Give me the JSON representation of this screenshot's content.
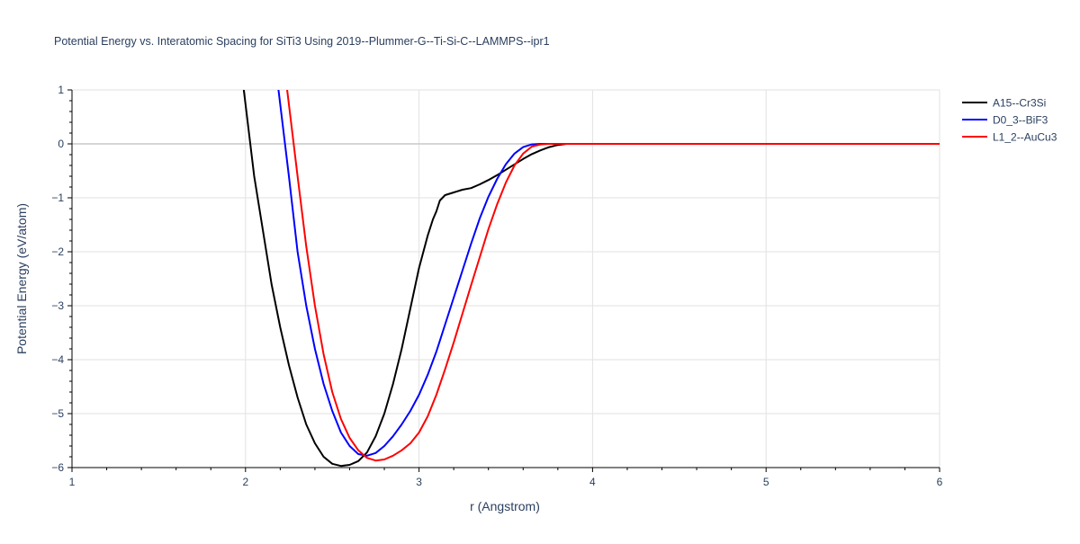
{
  "chart_data": {
    "type": "line",
    "title": "Potential Energy vs. Interatomic Spacing for SiTi3 Using 2019--Plummer-G--Ti-Si-C--LAMMPS--ipr1",
    "xlabel": "r (Angstrom)",
    "ylabel": "Potential Energy (eV/atom)",
    "xlim": [
      1,
      6
    ],
    "ylim": [
      -6,
      1
    ],
    "xticks": [
      1,
      2,
      3,
      4,
      5,
      6
    ],
    "yticks": [
      1,
      0,
      -1,
      -2,
      -3,
      -4,
      -5,
      -6
    ],
    "xtick_labels": [
      "1",
      "2",
      "3",
      "4",
      "5",
      "6"
    ],
    "ytick_labels": [
      "1",
      "0",
      "−1",
      "−2",
      "−3",
      "−4",
      "−5",
      "−6"
    ],
    "grid": true,
    "legend_position": "top-right",
    "series": [
      {
        "name": "A15--Cr3Si",
        "color": "#000000",
        "x": [
          1.99,
          2.02,
          2.05,
          2.1,
          2.15,
          2.2,
          2.25,
          2.3,
          2.35,
          2.4,
          2.45,
          2.5,
          2.55,
          2.6,
          2.65,
          2.7,
          2.75,
          2.8,
          2.85,
          2.9,
          2.95,
          3.0,
          3.05,
          3.08,
          3.1,
          3.12,
          3.15,
          3.2,
          3.25,
          3.3,
          3.35,
          3.4,
          3.45,
          3.5,
          3.55,
          3.6,
          3.65,
          3.7,
          3.75,
          3.8,
          3.85,
          3.9,
          4.0,
          5.0,
          6.0
        ],
        "y": [
          1.0,
          0.2,
          -0.6,
          -1.6,
          -2.6,
          -3.4,
          -4.1,
          -4.7,
          -5.2,
          -5.55,
          -5.8,
          -5.93,
          -5.97,
          -5.95,
          -5.88,
          -5.72,
          -5.42,
          -5.0,
          -4.45,
          -3.8,
          -3.05,
          -2.3,
          -1.7,
          -1.4,
          -1.25,
          -1.05,
          -0.95,
          -0.9,
          -0.85,
          -0.82,
          -0.75,
          -0.67,
          -0.58,
          -0.48,
          -0.38,
          -0.28,
          -0.19,
          -0.12,
          -0.06,
          -0.02,
          0.0,
          0.0,
          0.0,
          0.0,
          0.0
        ]
      },
      {
        "name": "D0_3--BiF3",
        "color": "#0000ff",
        "x": [
          2.19,
          2.22,
          2.25,
          2.3,
          2.35,
          2.4,
          2.45,
          2.5,
          2.55,
          2.6,
          2.65,
          2.7,
          2.75,
          2.8,
          2.85,
          2.9,
          2.95,
          3.0,
          3.05,
          3.1,
          3.15,
          3.2,
          3.25,
          3.3,
          3.35,
          3.4,
          3.45,
          3.5,
          3.55,
          3.6,
          3.65,
          3.7,
          3.75,
          3.8,
          3.85,
          3.9,
          4.0,
          5.0,
          6.0
        ],
        "y": [
          1.0,
          0.2,
          -0.6,
          -2.0,
          -3.0,
          -3.8,
          -4.45,
          -4.95,
          -5.35,
          -5.6,
          -5.75,
          -5.78,
          -5.73,
          -5.6,
          -5.42,
          -5.2,
          -4.95,
          -4.65,
          -4.28,
          -3.85,
          -3.35,
          -2.85,
          -2.35,
          -1.85,
          -1.38,
          -0.98,
          -0.65,
          -0.38,
          -0.18,
          -0.06,
          -0.01,
          0.0,
          0.0,
          0.0,
          0.0,
          0.0,
          0.0,
          0.0,
          0.0
        ]
      },
      {
        "name": "L1_2--AuCu3",
        "color": "#ff0000",
        "x": [
          2.24,
          2.27,
          2.3,
          2.35,
          2.4,
          2.45,
          2.5,
          2.55,
          2.6,
          2.65,
          2.7,
          2.75,
          2.8,
          2.85,
          2.9,
          2.95,
          3.0,
          3.05,
          3.1,
          3.15,
          3.2,
          3.25,
          3.3,
          3.35,
          3.4,
          3.45,
          3.5,
          3.55,
          3.6,
          3.65,
          3.7,
          3.75,
          3.8,
          3.85,
          3.9,
          4.0,
          5.0,
          6.0
        ],
        "y": [
          1.0,
          0.2,
          -0.6,
          -1.9,
          -3.0,
          -3.9,
          -4.6,
          -5.1,
          -5.45,
          -5.68,
          -5.82,
          -5.87,
          -5.85,
          -5.78,
          -5.68,
          -5.55,
          -5.35,
          -5.05,
          -4.65,
          -4.18,
          -3.68,
          -3.15,
          -2.62,
          -2.1,
          -1.58,
          -1.12,
          -0.72,
          -0.4,
          -0.18,
          -0.05,
          -0.01,
          0.0,
          0.0,
          0.0,
          0.0,
          0.0,
          0.0,
          0.0
        ]
      }
    ]
  }
}
